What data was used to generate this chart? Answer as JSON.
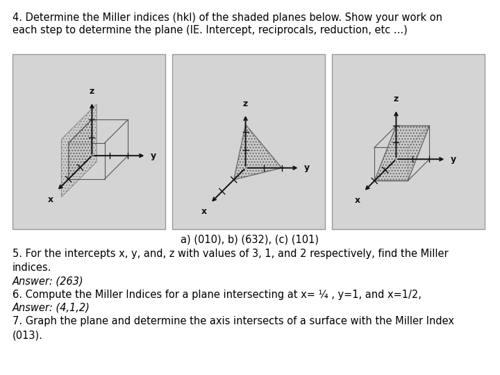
{
  "title_line1": "4. Determine the Miller indices (hkl) of the shaded planes below. Show your work on",
  "title_line2": "each step to determine the plane (IE. Intercept, reciprocals, reduction, etc ...)",
  "answer_label": "a) (010), b) (632), (c) (101)",
  "q5_line1": "5. For the intercepts x, y, and, z with values of 3, 1, and 2 respectively, find the Miller",
  "q5_line2": "indices.",
  "q5_ans": "Answer: (263)",
  "q6_line1": "6. Compute the Miller Indices for a plane intersecting at x= ¼ , y=1, and x=1/2,",
  "q6_ans": "Answer: (4,1,2)",
  "q7_line1": "7. Graph the plane and determine the axis intersects of a surface with the Miller Index",
  "q7_line2": "(013).",
  "bg_color": "#ffffff",
  "box_bg": "#d4d4d4",
  "box_border": "#999999",
  "axis_color": "#111111",
  "plane_fill": "#c8c8c8",
  "plane_edge": "#444444",
  "hatch": "....",
  "text_color": "#000000",
  "title_fontsize": 10.5,
  "body_fontsize": 10.5,
  "answer_fontsize": 10.5
}
